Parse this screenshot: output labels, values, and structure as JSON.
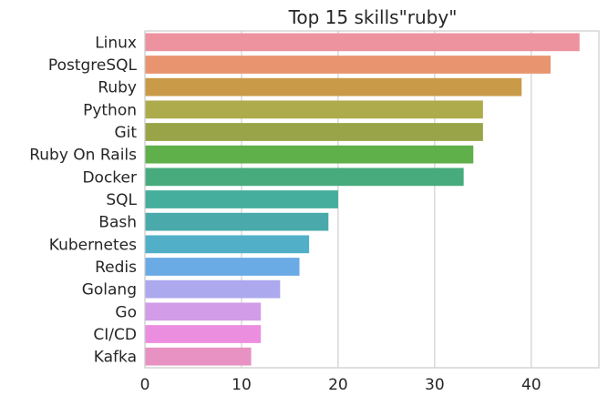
{
  "chart_data": {
    "type": "bar",
    "orientation": "horizontal",
    "title": "Top 15 skills\"ruby\"",
    "xlabel": "",
    "ylabel": "",
    "xlim": [
      0,
      47
    ],
    "x_ticks": [
      0,
      10,
      20,
      30,
      40
    ],
    "grid": "vertical",
    "categories": [
      "Linux",
      "PostgreSQL",
      "Ruby",
      "Python",
      "Git",
      "Ruby On Rails",
      "Docker",
      "SQL",
      "Bash",
      "Kubernetes",
      "Redis",
      "Golang",
      "Go",
      "CI/CD",
      "Kafka"
    ],
    "values": [
      45,
      42,
      39,
      35,
      35,
      34,
      33,
      20,
      19,
      17,
      16,
      14,
      12,
      12,
      11
    ],
    "colors": [
      "#ec939f",
      "#e8946f",
      "#c99a47",
      "#adab4b",
      "#98a447",
      "#5faf4a",
      "#48ab7d",
      "#45ae9c",
      "#4aaaab",
      "#51b0c8",
      "#6aabe6",
      "#ada9ee",
      "#d29ce8",
      "#ec8edf",
      "#e892c3"
    ]
  }
}
